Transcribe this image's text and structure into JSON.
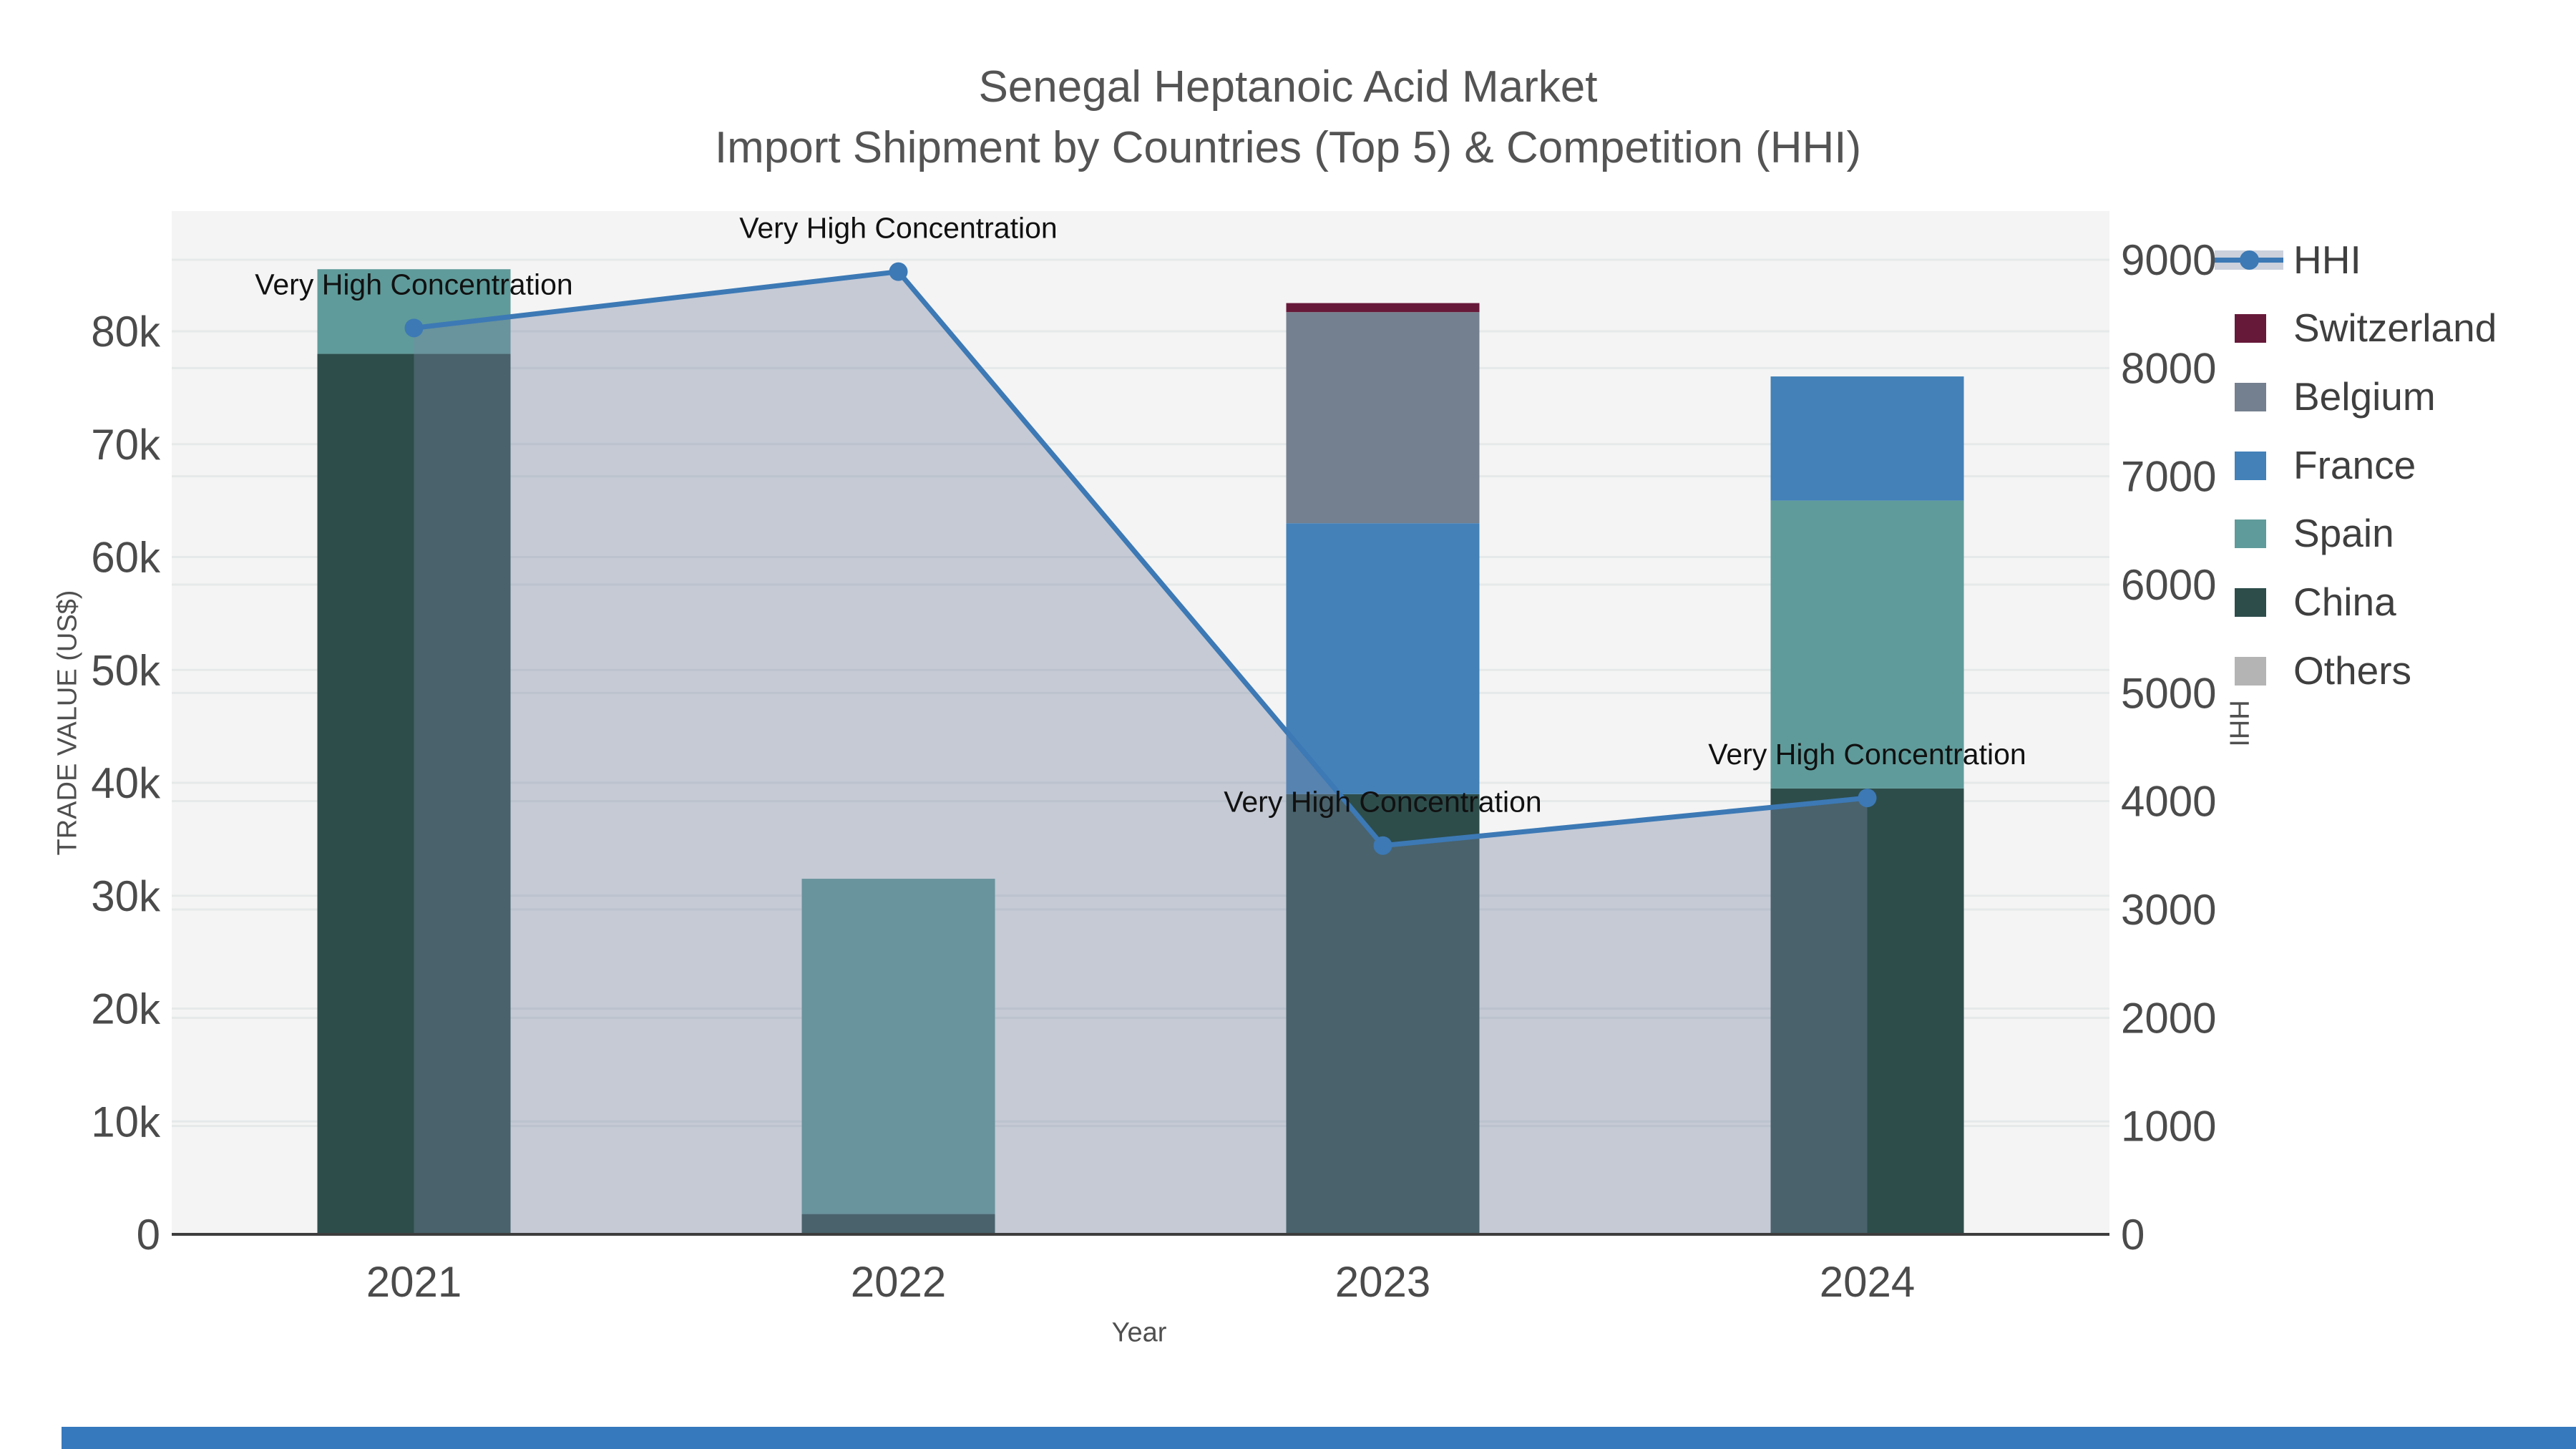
{
  "title": "Senegal Heptanoic Acid Market",
  "subtitle": "Import Shipment by Countries (Top 5) & Competition (HHI)",
  "chart_data": {
    "type": "bar",
    "subtype": "stacked bars with overlaid line (dual y-axis) and filled area",
    "title": "Senegal Heptanoic Acid Market",
    "subtitle": "Import Shipment by Countries (Top 5) & Competition (HHI)",
    "xlabel": "Year",
    "ylabel_left": "TRADE VALUE (US$)",
    "ylabel_right": "HHI",
    "categories": [
      "2021",
      "2022",
      "2023",
      "2024"
    ],
    "stack_order_bottom_to_top": [
      "Others",
      "China",
      "Spain",
      "France",
      "Belgium",
      "Switzerland"
    ],
    "series": [
      {
        "name": "Switzerland",
        "color": "#67193a",
        "values": [
          0,
          0,
          800,
          0
        ]
      },
      {
        "name": "Belgium",
        "color": "#74808f",
        "values": [
          0,
          0,
          18700,
          0
        ]
      },
      {
        "name": "France",
        "color": "#4381b8",
        "values": [
          0,
          0,
          24000,
          11000
        ]
      },
      {
        "name": "Spain",
        "color": "#5f9b9a",
        "values": [
          7500,
          29700,
          0,
          25500
        ]
      },
      {
        "name": "China",
        "color": "#2d4d4b",
        "values": [
          78000,
          1800,
          39000,
          39500
        ]
      },
      {
        "name": "Others",
        "color": "#b4b4b4",
        "values": [
          0,
          0,
          0,
          0
        ]
      }
    ],
    "line_series": {
      "name": "HHI",
      "color": "#3c79b5",
      "area_fill": "rgba(120,134,162,0.38)",
      "values": [
        8370,
        8890,
        3590,
        4030
      ]
    },
    "annotations": [
      {
        "x": "2021",
        "text": "Very High Concentration"
      },
      {
        "x": "2022",
        "text": "Very High Concentration"
      },
      {
        "x": "2023",
        "text": "Very High Concentration"
      },
      {
        "x": "2024",
        "text": "Very High Concentration"
      }
    ],
    "y_left": {
      "min": 0,
      "max": 90600,
      "tick_values": [
        0,
        10000,
        20000,
        30000,
        40000,
        50000,
        60000,
        70000,
        80000
      ],
      "tick_labels": [
        "0",
        "10k",
        "20k",
        "30k",
        "40k",
        "50k",
        "60k",
        "70k",
        "80k"
      ]
    },
    "y_right": {
      "min": 0,
      "max": 9450,
      "tick_values": [
        0,
        1000,
        2000,
        3000,
        4000,
        5000,
        6000,
        7000,
        8000,
        9000
      ],
      "tick_labels": [
        "0",
        "1000",
        "2000",
        "3000",
        "4000",
        "5000",
        "6000",
        "7000",
        "8000",
        "9000"
      ]
    },
    "grid": true,
    "legend_position": "right",
    "colors": {
      "plot_bg": "#f4f4f4",
      "grid": "#e6e9e9",
      "axis_line": "#3d3d3d",
      "tick_text": "#4b4b4b",
      "annotation_text": "#111111"
    }
  },
  "legend": {
    "items": [
      {
        "label": "HHI",
        "color": "#3c79b5"
      },
      {
        "label": "Switzerland",
        "color": "#67193a"
      },
      {
        "label": "Belgium",
        "color": "#74808f"
      },
      {
        "label": "France",
        "color": "#4381b8"
      },
      {
        "label": "Spain",
        "color": "#5f9b9a"
      },
      {
        "label": "China",
        "color": "#2d4d4b"
      },
      {
        "label": "Others",
        "color": "#b4b4b4"
      }
    ]
  },
  "axes": {
    "xlabel": "Year",
    "ylabel_left": "TRADE VALUE (US$)",
    "ylabel_right": "HHI"
  }
}
